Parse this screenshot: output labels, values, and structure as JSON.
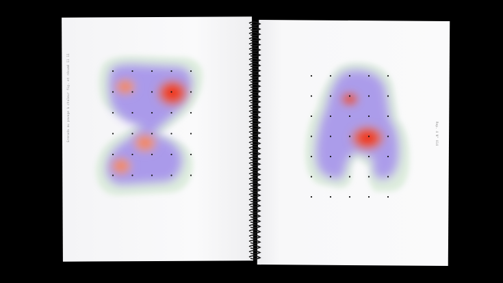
{
  "caption_left": "Grenada au pavage à chaleur fig. et résumé 11 11",
  "caption_right": "Rep. 4 N° 014",
  "colors": {
    "background": "#000000",
    "paper": "#f8f8f9",
    "halo": "#dfeee0",
    "violet": "#9f8bea",
    "red": "#ee2818",
    "orange": "#f07a4a",
    "binding": "#1a1a1a",
    "dot": "#111111"
  }
}
